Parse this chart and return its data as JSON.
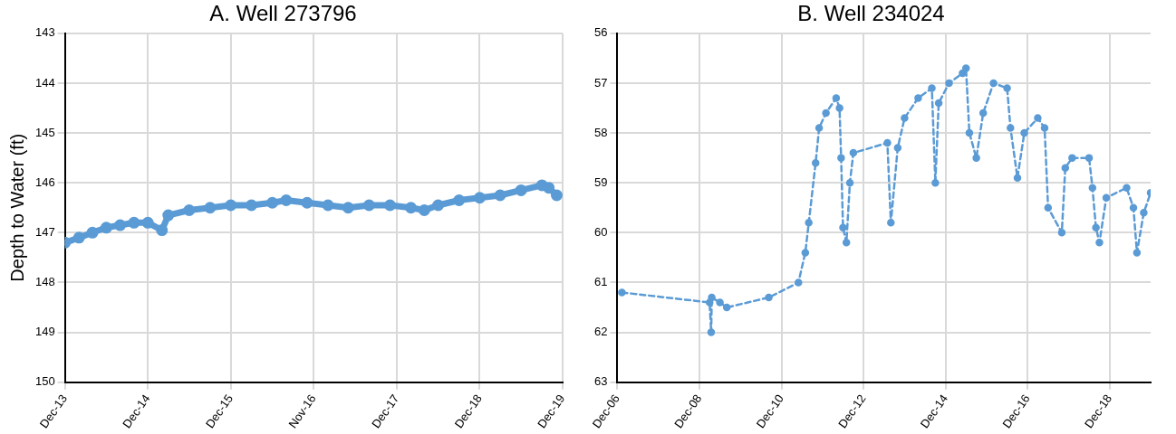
{
  "chart_data": [
    {
      "type": "line",
      "title": "A. Well 273796",
      "ylabel": "Depth to Water (ft)",
      "series": [
        {
          "color": "#5b9bd5",
          "x": [
            "2013-12-01",
            "2014-02-01",
            "2014-04-01",
            "2014-06-01",
            "2014-08-01",
            "2014-10-01",
            "2014-12-01",
            "2015-02-01",
            "2015-03-01",
            "2015-06-01",
            "2015-09-01",
            "2015-12-01",
            "2016-03-01",
            "2016-06-01",
            "2016-08-01",
            "2016-11-01",
            "2017-02-01",
            "2017-05-01",
            "2017-08-01",
            "2017-11-01",
            "2018-02-01",
            "2018-04-01",
            "2018-06-01",
            "2018-09-01",
            "2018-12-01",
            "2019-03-01",
            "2019-06-01",
            "2019-09-01",
            "2019-10-01",
            "2019-11-05"
          ],
          "values": [
            147.2,
            147.1,
            147.0,
            146.9,
            146.85,
            146.8,
            146.8,
            146.95,
            146.65,
            146.55,
            146.5,
            146.45,
            146.45,
            146.4,
            146.35,
            146.4,
            146.45,
            146.5,
            146.45,
            146.45,
            146.5,
            146.55,
            146.45,
            146.35,
            146.3,
            146.25,
            146.15,
            146.05,
            146.1,
            146.25
          ]
        }
      ],
      "xlim": [
        "2013-12-01",
        "2019-12-01"
      ],
      "xticks": [
        {
          "value": "2013-12-01",
          "label": "Dec-13"
        },
        {
          "value": "2014-12-01",
          "label": "Dec-14"
        },
        {
          "value": "2015-12-01",
          "label": "Dec-15"
        },
        {
          "value": "2016-11-30",
          "label": "Nov-16"
        },
        {
          "value": "2017-12-01",
          "label": "Dec-17"
        },
        {
          "value": "2018-12-01",
          "label": "Dec-18"
        },
        {
          "value": "2019-12-01",
          "label": "Dec-19"
        }
      ],
      "ylim": [
        150,
        143
      ],
      "yticks": [
        143,
        144,
        145,
        146,
        147,
        148,
        149,
        150
      ],
      "grid": true,
      "legend": false,
      "marker": "circle",
      "line_style": "solid"
    },
    {
      "type": "line",
      "title": "B. Well 234024",
      "series": [
        {
          "color": "#5b9bd5",
          "x": [
            "2007-01-10",
            "2009-03-01",
            "2009-03-15",
            "2009-03-20",
            "2009-06-01",
            "2009-08-01",
            "2010-08-10",
            "2011-05-01",
            "2011-07-01",
            "2011-08-01",
            "2011-10-01",
            "2011-11-01",
            "2012-01-01",
            "2012-04-01",
            "2012-05-01",
            "2012-05-15",
            "2012-06-01",
            "2012-07-01",
            "2012-08-01",
            "2012-09-01",
            "2013-07-01",
            "2013-08-01",
            "2013-10-01",
            "2013-12-01",
            "2014-04-01",
            "2014-08-01",
            "2014-09-01",
            "2014-10-01",
            "2015-01-01",
            "2015-05-01",
            "2015-06-01",
            "2015-07-01",
            "2015-09-01",
            "2015-11-01",
            "2016-02-01",
            "2016-06-01",
            "2016-07-01",
            "2016-09-01",
            "2016-11-01",
            "2017-03-01",
            "2017-05-01",
            "2017-06-01",
            "2017-10-01",
            "2017-11-01",
            "2018-01-01",
            "2018-06-01",
            "2018-07-01",
            "2018-08-01",
            "2018-09-01",
            "2018-11-01",
            "2019-05-01",
            "2019-07-01",
            "2019-08-01",
            "2019-10-01",
            "2019-12-01"
          ],
          "values": [
            61.2,
            61.4,
            62.0,
            61.3,
            61.4,
            61.5,
            61.3,
            61.0,
            60.4,
            59.8,
            58.6,
            57.9,
            57.6,
            57.3,
            57.5,
            58.5,
            59.9,
            60.2,
            59.0,
            58.4,
            58.2,
            59.8,
            58.3,
            57.7,
            57.3,
            57.1,
            59.0,
            57.4,
            57.0,
            56.8,
            56.7,
            58.0,
            58.5,
            57.6,
            57.0,
            57.1,
            57.9,
            58.9,
            58.0,
            57.7,
            57.9,
            59.5,
            60.0,
            58.7,
            58.5,
            58.5,
            59.1,
            59.9,
            60.2,
            59.3,
            59.1,
            59.5,
            60.4,
            59.6,
            59.2
          ]
        }
      ],
      "xlim": [
        "2006-12-01",
        "2019-12-01"
      ],
      "xticks": [
        {
          "value": "2006-12-01",
          "label": "Dec-06"
        },
        {
          "value": "2008-12-01",
          "label": "Dec-08"
        },
        {
          "value": "2010-12-01",
          "label": "Dec-10"
        },
        {
          "value": "2012-12-01",
          "label": "Dec-12"
        },
        {
          "value": "2014-12-01",
          "label": "Dec-14"
        },
        {
          "value": "2016-12-01",
          "label": "Dec-16"
        },
        {
          "value": "2018-12-01",
          "label": "Dec-18"
        }
      ],
      "ylim": [
        63,
        56
      ],
      "yticks": [
        56,
        57,
        58,
        59,
        60,
        61,
        62,
        63
      ],
      "grid": true,
      "legend": false,
      "marker": "circle",
      "line_style": "dashed"
    }
  ]
}
